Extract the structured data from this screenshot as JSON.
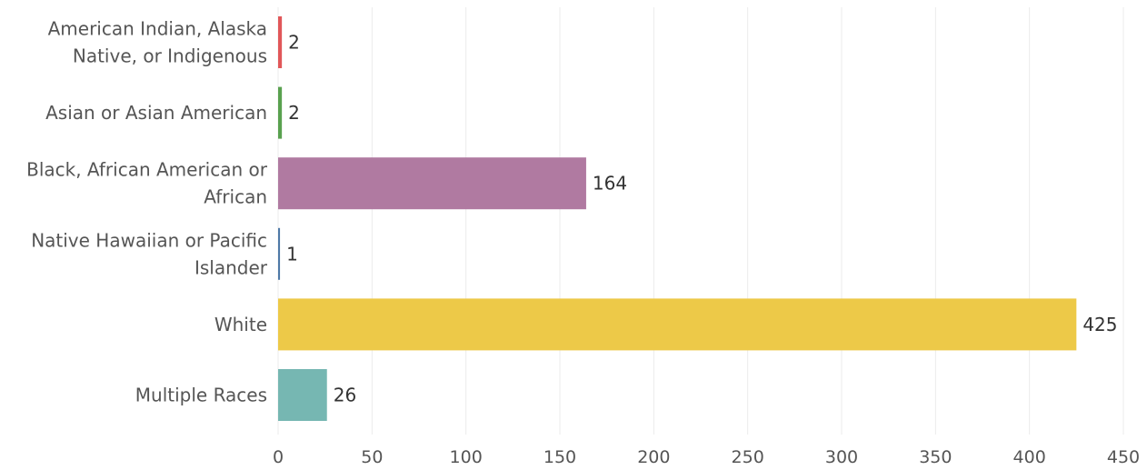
{
  "chart_data": {
    "type": "bar",
    "orientation": "horizontal",
    "categories": [
      [
        "American Indian, Alaska",
        "Native, or Indigenous"
      ],
      [
        "Asian or Asian American"
      ],
      [
        "Black, African American or",
        "African"
      ],
      [
        "Native Hawaiian or Pacific",
        "Islander"
      ],
      [
        "White"
      ],
      [
        "Multiple Races"
      ]
    ],
    "values": [
      2,
      2,
      164,
      1,
      425,
      26
    ],
    "value_labels": [
      "2",
      "2",
      "164",
      "1",
      "425",
      "26"
    ],
    "colors": [
      "#e15759",
      "#59a14f",
      "#b07aa1",
      "#4e79a7",
      "#edc948",
      "#76b7b2"
    ],
    "xlim": [
      0,
      450
    ],
    "xticks": [
      0,
      50,
      100,
      150,
      200,
      250,
      300,
      350,
      400,
      450
    ],
    "xtick_labels": [
      "0",
      "50",
      "100",
      "150",
      "200",
      "250",
      "300",
      "350",
      "400",
      "450"
    ],
    "grid": "vertical",
    "title": "",
    "xlabel": "",
    "ylabel": "",
    "legend": "none"
  }
}
